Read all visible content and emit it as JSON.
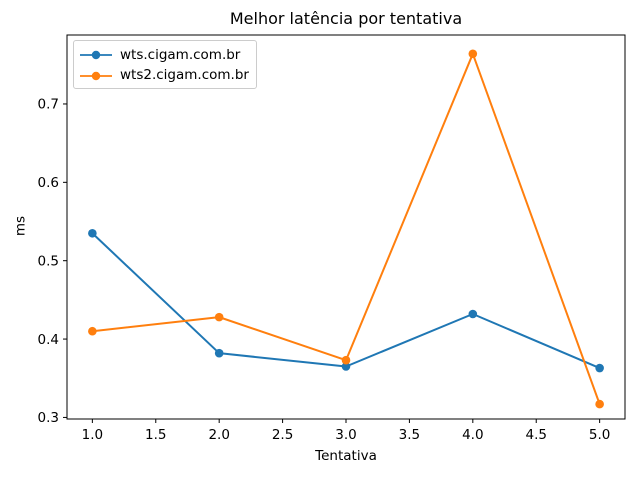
{
  "figure": {
    "background": "#ffffff"
  },
  "chart_data": {
    "type": "line",
    "title": "Melhor latência por tentativa",
    "xlabel": "Tentativa",
    "ylabel": "ms",
    "x": [
      1,
      2,
      3,
      4,
      5
    ],
    "series": [
      {
        "name": "wts.cigam.com.br",
        "color": "#1f77b4",
        "marker": "o",
        "values": [
          0.535,
          0.382,
          0.365,
          0.432,
          0.363
        ]
      },
      {
        "name": "wts2.cigam.com.br",
        "color": "#ff7f0e",
        "marker": "o",
        "values": [
          0.41,
          0.428,
          0.373,
          0.764,
          0.317
        ]
      }
    ],
    "xlim": [
      0.8,
      5.2
    ],
    "ylim": [
      0.298,
      0.788
    ],
    "xticks": [
      1.0,
      1.5,
      2.0,
      2.5,
      3.0,
      3.5,
      4.0,
      4.5,
      5.0
    ],
    "xtick_labels": [
      "1.0",
      "1.5",
      "2.0",
      "2.5",
      "3.0",
      "3.5",
      "4.0",
      "4.5",
      "5.0"
    ],
    "yticks": [
      0.3,
      0.4,
      0.5,
      0.6,
      0.7
    ],
    "ytick_labels": [
      "0.3",
      "0.4",
      "0.5",
      "0.6",
      "0.7"
    ],
    "grid": false,
    "legend": {
      "position": "upper left",
      "frame": true
    },
    "axis_color": "#000000",
    "text_color": "#000000"
  }
}
